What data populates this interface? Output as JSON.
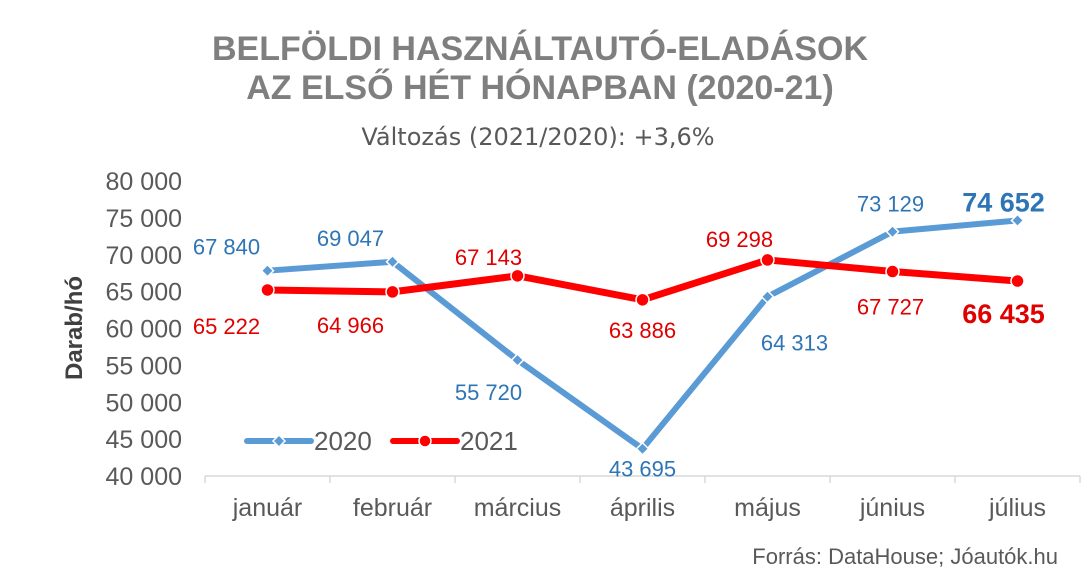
{
  "chart_data": {
    "type": "line",
    "title_line1": "BELFÖLDI HASZNÁLTAUTÓ-ELADÁSOK",
    "title_line2": "AZ ELSŐ HÉT HÓNAPBAN (2020-21)",
    "subtitle": "Változás (2021/2020): +3,6%",
    "ylabel": "Darab/hó",
    "xlabel": "",
    "ylim": [
      40000,
      80000
    ],
    "y_ticks": [
      40000,
      45000,
      50000,
      55000,
      60000,
      65000,
      70000,
      75000,
      80000
    ],
    "y_tick_labels": [
      "40 000",
      "45 000",
      "50 000",
      "55 000",
      "60 000",
      "65 000",
      "70 000",
      "75 000",
      "80 000"
    ],
    "grid": false,
    "legend_position": "bottom-left",
    "categories": [
      "január",
      "február",
      "március",
      "április",
      "május",
      "június",
      "július"
    ],
    "series": [
      {
        "name": "2020",
        "color": "#5b9bd5",
        "label_color": "#2e75b6",
        "marker": "diamond",
        "values": [
          67840,
          69047,
          55720,
          43695,
          64313,
          73129,
          74652
        ],
        "labels": [
          "67 840",
          "69 047",
          "55 720",
          "43 695",
          "64 313",
          "73 129",
          "74 652"
        ]
      },
      {
        "name": "2021",
        "color": "#ff0000",
        "label_color": "#e00000",
        "marker": "circle",
        "values": [
          65222,
          64966,
          67143,
          63886,
          69298,
          67727,
          66435
        ],
        "labels": [
          "65 222",
          "64 966",
          "67 143",
          "63 886",
          "69 298",
          "67 727",
          "66 435"
        ]
      }
    ],
    "source": "Forrás: DataHouse; Jóautók.hu"
  }
}
